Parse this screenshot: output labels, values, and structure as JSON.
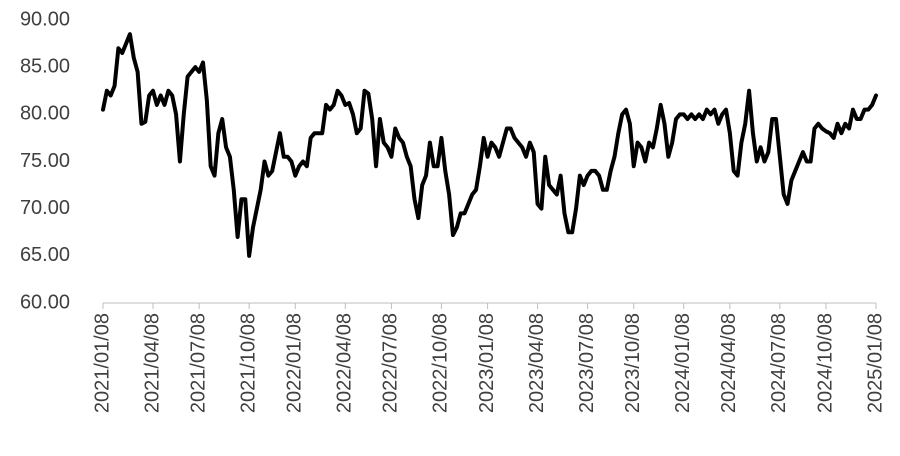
{
  "chart_data": {
    "type": "line",
    "categories": [
      "2021/01/08",
      null,
      null,
      null,
      null,
      null,
      null,
      null,
      null,
      null,
      null,
      null,
      null,
      "2021/04/08",
      null,
      null,
      null,
      null,
      null,
      null,
      null,
      null,
      null,
      null,
      null,
      "2021/07/08",
      null,
      null,
      null,
      null,
      null,
      null,
      null,
      null,
      null,
      null,
      null,
      null,
      "2021/10/08",
      null,
      null,
      null,
      null,
      null,
      null,
      null,
      null,
      null,
      null,
      null,
      "2022/01/08",
      null,
      null,
      null,
      null,
      null,
      null,
      null,
      null,
      null,
      null,
      null,
      null,
      "2022/04/08",
      null,
      null,
      null,
      null,
      null,
      null,
      null,
      null,
      null,
      null,
      null,
      "2022/07/08",
      null,
      null,
      null,
      null,
      null,
      null,
      null,
      null,
      null,
      null,
      null,
      null,
      "2022/10/08",
      null,
      null,
      null,
      null,
      null,
      null,
      null,
      null,
      null,
      null,
      null,
      "2023/01/08",
      null,
      null,
      null,
      null,
      null,
      null,
      null,
      null,
      null,
      null,
      null,
      null,
      "2023/04/08",
      null,
      null,
      null,
      null,
      null,
      null,
      null,
      null,
      null,
      null,
      null,
      null,
      "2023/07/08",
      null,
      null,
      null,
      null,
      null,
      null,
      null,
      null,
      null,
      null,
      null,
      "2023/10/08",
      null,
      null,
      null,
      null,
      null,
      null,
      null,
      null,
      null,
      null,
      null,
      null,
      "2024/01/08",
      null,
      null,
      null,
      null,
      null,
      null,
      null,
      null,
      null,
      null,
      null,
      "2024/04/08",
      null,
      null,
      null,
      null,
      null,
      null,
      null,
      null,
      null,
      null,
      null,
      null,
      "2024/07/08",
      null,
      null,
      null,
      null,
      null,
      null,
      null,
      null,
      null,
      null,
      null,
      "2024/10/08",
      null,
      null,
      null,
      null,
      null,
      null,
      null,
      null,
      null,
      null,
      null,
      null,
      "2025/01/08"
    ],
    "values": [
      80.5,
      82.5,
      82,
      83,
      87,
      86.5,
      87.5,
      88.5,
      86,
      84.5,
      79,
      79.2,
      82,
      82.5,
      81,
      82,
      81,
      82.5,
      82,
      80,
      75,
      80,
      84,
      84.5,
      85,
      84.5,
      85.5,
      81.5,
      74.5,
      73.5,
      78,
      79.5,
      76.5,
      75.5,
      72,
      67,
      71,
      71,
      65,
      68,
      70,
      72,
      75,
      73.5,
      74,
      76,
      78,
      75.5,
      75.5,
      75,
      73.5,
      74.5,
      75,
      74.5,
      77.5,
      78,
      78,
      78,
      81,
      80.5,
      81,
      82.5,
      82,
      81,
      81.2,
      80,
      78,
      78.5,
      82.5,
      82.2,
      79.5,
      74.5,
      79.5,
      77,
      76.5,
      75.5,
      78.5,
      77.5,
      77,
      75.5,
      74.5,
      71,
      69,
      72.5,
      73.5,
      77,
      74.5,
      74.5,
      77.5,
      74,
      71.5,
      67.2,
      68,
      69.5,
      69.5,
      70.5,
      71.5,
      72,
      74.5,
      77.5,
      75.5,
      77,
      76.5,
      75.5,
      77,
      78.5,
      78.5,
      77.5,
      77,
      76.5,
      75.5,
      77,
      76,
      70.5,
      70,
      75.5,
      72.5,
      72,
      71.5,
      73.5,
      69.5,
      67.5,
      67.5,
      70,
      73.5,
      72.5,
      73.5,
      74,
      74,
      73.5,
      72,
      72,
      74,
      75.5,
      78,
      80,
      80.5,
      79,
      74.5,
      77,
      76.5,
      75,
      77,
      76.5,
      78.5,
      81,
      79,
      75.5,
      77,
      79.5,
      80,
      80,
      79.5,
      80,
      79.5,
      80,
      79.5,
      80.5,
      80,
      80.5,
      79,
      80,
      80.5,
      78,
      74,
      73.5,
      77,
      79,
      82.5,
      78,
      75,
      76.5,
      75,
      76,
      79.5,
      79.5,
      75.5,
      71.5,
      70.5,
      73,
      74,
      75,
      76,
      75,
      75,
      78.5,
      79,
      78.5,
      78.2,
      78,
      77.5,
      79,
      78,
      79,
      78.5,
      80.5,
      79.5,
      79.5,
      80.5,
      80.5,
      81,
      82
    ],
    "color": "#000000",
    "ylim": [
      60,
      90
    ],
    "yticks": [
      {
        "value": 60,
        "label": "60.00"
      },
      {
        "value": 65,
        "label": "65.00"
      },
      {
        "value": 70,
        "label": "70.00"
      },
      {
        "value": 75,
        "label": "75.00"
      },
      {
        "value": 80,
        "label": "80.00"
      },
      {
        "value": 85,
        "label": "85.00"
      },
      {
        "value": 90,
        "label": "90.00"
      }
    ],
    "grid": false
  }
}
